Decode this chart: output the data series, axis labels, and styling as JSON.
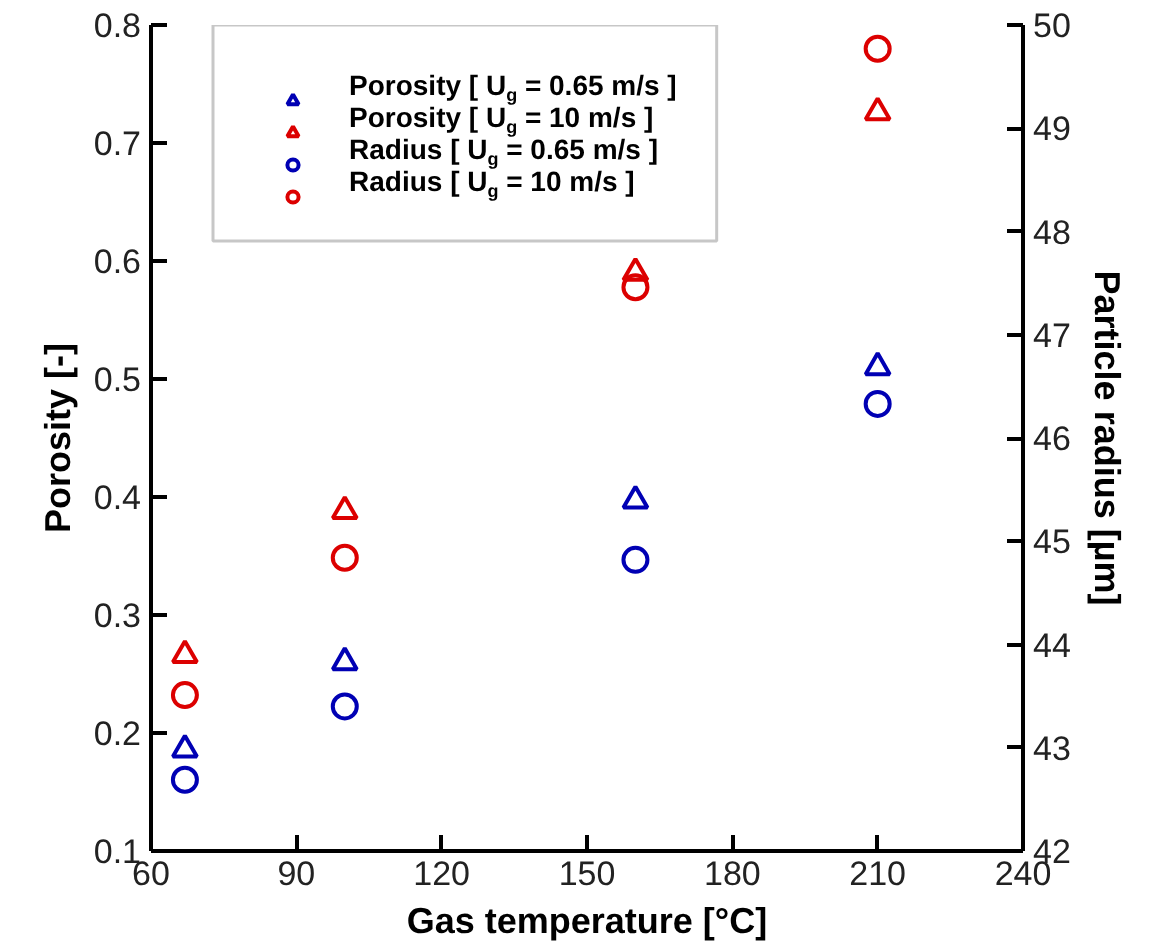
{
  "chart_data": {
    "type": "scatter",
    "xlabel": "Gas temperature [°C]",
    "ylabel": "Porosity [-]",
    "y2label": "Particle radius [µm]",
    "x": [
      67,
      100,
      160,
      210
    ],
    "series": [
      {
        "name": "Porosity [ U$_{g}$ = 0.65 m/s ]",
        "color": "#0000b4",
        "marker": "triangle",
        "values": [
          0.186,
          0.26,
          0.397,
          0.51
        ]
      },
      {
        "name": "Porosity [ U$_{g}$ = 10 m/s ]",
        "color": "#dc0000",
        "marker": "triangle",
        "values": [
          0.266,
          0.388,
          0.59,
          0.726
        ]
      },
      {
        "name": "Radius [ U$_{g}$ = 0.65 m/s ]",
        "color": "#0000b4",
        "marker": "circle",
        "axis": "y2",
        "values": [
          42.69,
          43.4,
          44.82,
          46.33
        ]
      },
      {
        "name": "Radius [ U$_{g}$ = 10 m/s ]",
        "color": "#dc0000",
        "marker": "circle",
        "axis": "y2",
        "values": [
          43.51,
          44.84,
          47.46,
          49.77
        ]
      }
    ],
    "xlim": [
      60,
      240
    ],
    "xticks": [
      60,
      90,
      120,
      150,
      180,
      210,
      240
    ],
    "ylim": [
      0.1,
      0.8
    ],
    "yticks": [
      0.1,
      0.2,
      0.3,
      0.4,
      0.5,
      0.6,
      0.7,
      0.8
    ],
    "y2lim": [
      42,
      50
    ],
    "y2ticks": [
      42,
      43,
      44,
      45,
      46,
      47,
      48,
      49,
      50
    ],
    "grid": false,
    "legend": "top"
  }
}
